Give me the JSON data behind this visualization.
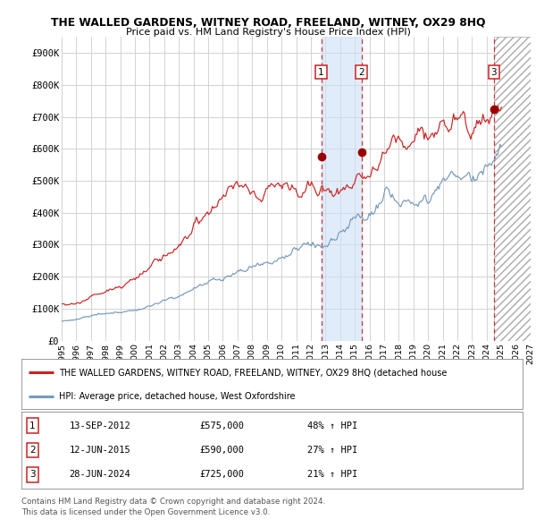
{
  "title": "THE WALLED GARDENS, WITNEY ROAD, FREELAND, WITNEY, OX29 8HQ",
  "subtitle": "Price paid vs. HM Land Registry's House Price Index (HPI)",
  "ylim": [
    0,
    950000
  ],
  "yticks": [
    0,
    100000,
    200000,
    300000,
    400000,
    500000,
    600000,
    700000,
    800000,
    900000
  ],
  "ytick_labels": [
    "£0",
    "£100K",
    "£200K",
    "£300K",
    "£400K",
    "£500K",
    "£600K",
    "£700K",
    "£800K",
    "£900K"
  ],
  "xlim_start": 1995.0,
  "xlim_end": 2027.0,
  "hpi_color": "#7799bb",
  "price_color": "#cc2222",
  "sale_color": "#990000",
  "grid_color": "#cccccc",
  "background_color": "#ffffff",
  "hatch_start": 2024.5,
  "sales": [
    {
      "num": 1,
      "date_str": "13-SEP-2012",
      "date_x": 2012.71,
      "price": 575000,
      "pct": "48%",
      "dir": "↑"
    },
    {
      "num": 2,
      "date_str": "12-JUN-2015",
      "date_x": 2015.45,
      "price": 590000,
      "pct": "27%",
      "dir": "↑"
    },
    {
      "num": 3,
      "date_str": "28-JUN-2024",
      "date_x": 2024.49,
      "price": 725000,
      "pct": "21%",
      "dir": "↑"
    }
  ],
  "legend_entries": [
    "THE WALLED GARDENS, WITNEY ROAD, FREELAND, WITNEY, OX29 8HQ (detached house",
    "HPI: Average price, detached house, West Oxfordshire"
  ],
  "footnote1": "Contains HM Land Registry data © Crown copyright and database right 2024.",
  "footnote2": "This data is licensed under the Open Government Licence v3.0."
}
